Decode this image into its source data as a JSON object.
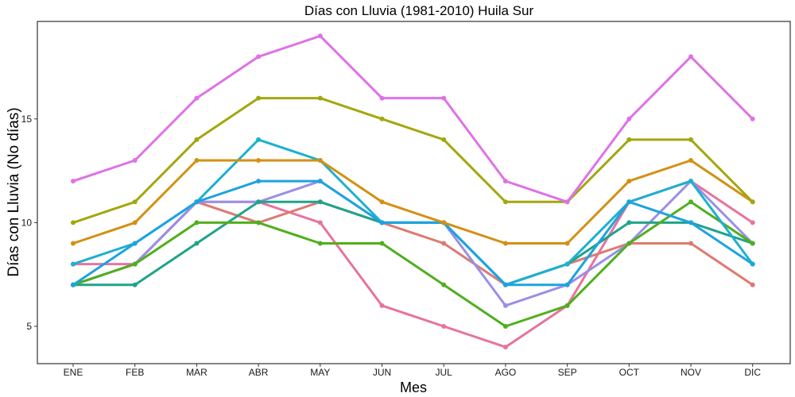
{
  "chart_data": {
    "type": "line",
    "title": "Días con Lluvia (1981-2010)  Huila Sur",
    "xlabel": "Mes",
    "ylabel": "Días con Lluvia (No días)",
    "categories": [
      "ENE",
      "FEB",
      "MAR",
      "ABR",
      "MAY",
      "JUN",
      "JUL",
      "AGO",
      "SEP",
      "OCT",
      "NOV",
      "DIC"
    ],
    "yticks": [
      5,
      10,
      15
    ],
    "ylim": [
      3.2,
      19.7
    ],
    "grid": false,
    "legend": "none",
    "series": [
      {
        "color": "#E7739E",
        "values": [
          8,
          8,
          11,
          11,
          10,
          6,
          5,
          4,
          6,
          11,
          12,
          10
        ]
      },
      {
        "color": "#DC7B72",
        "values": [
          7,
          8,
          11,
          10,
          11,
          10,
          9,
          7,
          8,
          9,
          9,
          7
        ]
      },
      {
        "color": "#9A8FE6",
        "values": [
          7,
          8,
          11,
          11,
          12,
          10,
          10,
          6,
          7,
          9,
          12,
          9
        ]
      },
      {
        "color": "#1FA38B",
        "values": [
          7,
          7,
          9,
          11,
          11,
          10,
          10,
          7,
          8,
          10,
          10,
          9
        ]
      },
      {
        "color": "#4FAF1D",
        "values": [
          7,
          8,
          10,
          10,
          9,
          9,
          7,
          5,
          6,
          9,
          11,
          9
        ]
      },
      {
        "color": "#1DB0CF",
        "values": [
          8,
          9,
          11,
          14,
          13,
          10,
          10,
          7,
          8,
          11,
          12,
          8
        ]
      },
      {
        "color": "#1EA3E0",
        "values": [
          7,
          9,
          11,
          12,
          12,
          10,
          10,
          7,
          7,
          11,
          10,
          8
        ]
      },
      {
        "color": "#D49012",
        "values": [
          9,
          10,
          13,
          13,
          13,
          11,
          10,
          9,
          9,
          12,
          13,
          11
        ]
      },
      {
        "color": "#A3A70E",
        "values": [
          10,
          11,
          14,
          16,
          16,
          15,
          14,
          11,
          11,
          14,
          14,
          11
        ]
      },
      {
        "color": "#DE72E6",
        "values": [
          12,
          13,
          16,
          18,
          19,
          16,
          16,
          12,
          11,
          15,
          18,
          15
        ]
      }
    ]
  }
}
